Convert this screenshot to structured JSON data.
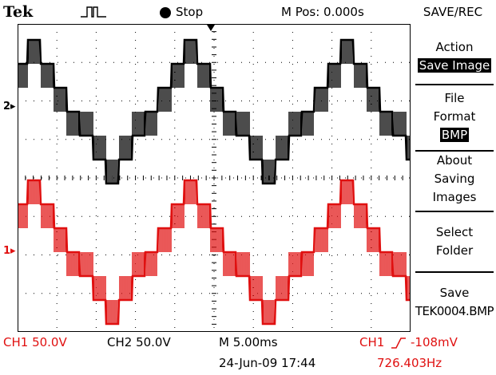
{
  "header": {
    "brand": "Tek",
    "trigger_icon": "trigger-pulse-icon",
    "run_state": "Stop",
    "m_pos": "M Pos: 0.000s",
    "menu_title": "SAVE/REC"
  },
  "sidebar": {
    "action_label": "Action",
    "action_value": "Save Image",
    "file_format_label_1": "File",
    "file_format_label_2": "Format",
    "file_format_value": "BMP",
    "about_1": "About",
    "about_2": "Saving",
    "about_3": "Images",
    "select_1": "Select",
    "select_2": "Folder",
    "save_1": "Save",
    "save_2": "TEK0004.BMP"
  },
  "markers": {
    "ch2": "2",
    "ch1": "1"
  },
  "readout": {
    "ch1_scale": "CH1  50.0V",
    "ch2_scale": "CH2  50.0V",
    "timebase": "M 5.00ms",
    "trigger_source": "CH1",
    "trigger_level": "-108mV",
    "date": "24-Jun-09 17:44",
    "frequency": "726.403Hz"
  },
  "colors": {
    "ch1": "#e01010",
    "ch2": "#000000",
    "grid": "#000000",
    "background": "#ffffff"
  }
}
